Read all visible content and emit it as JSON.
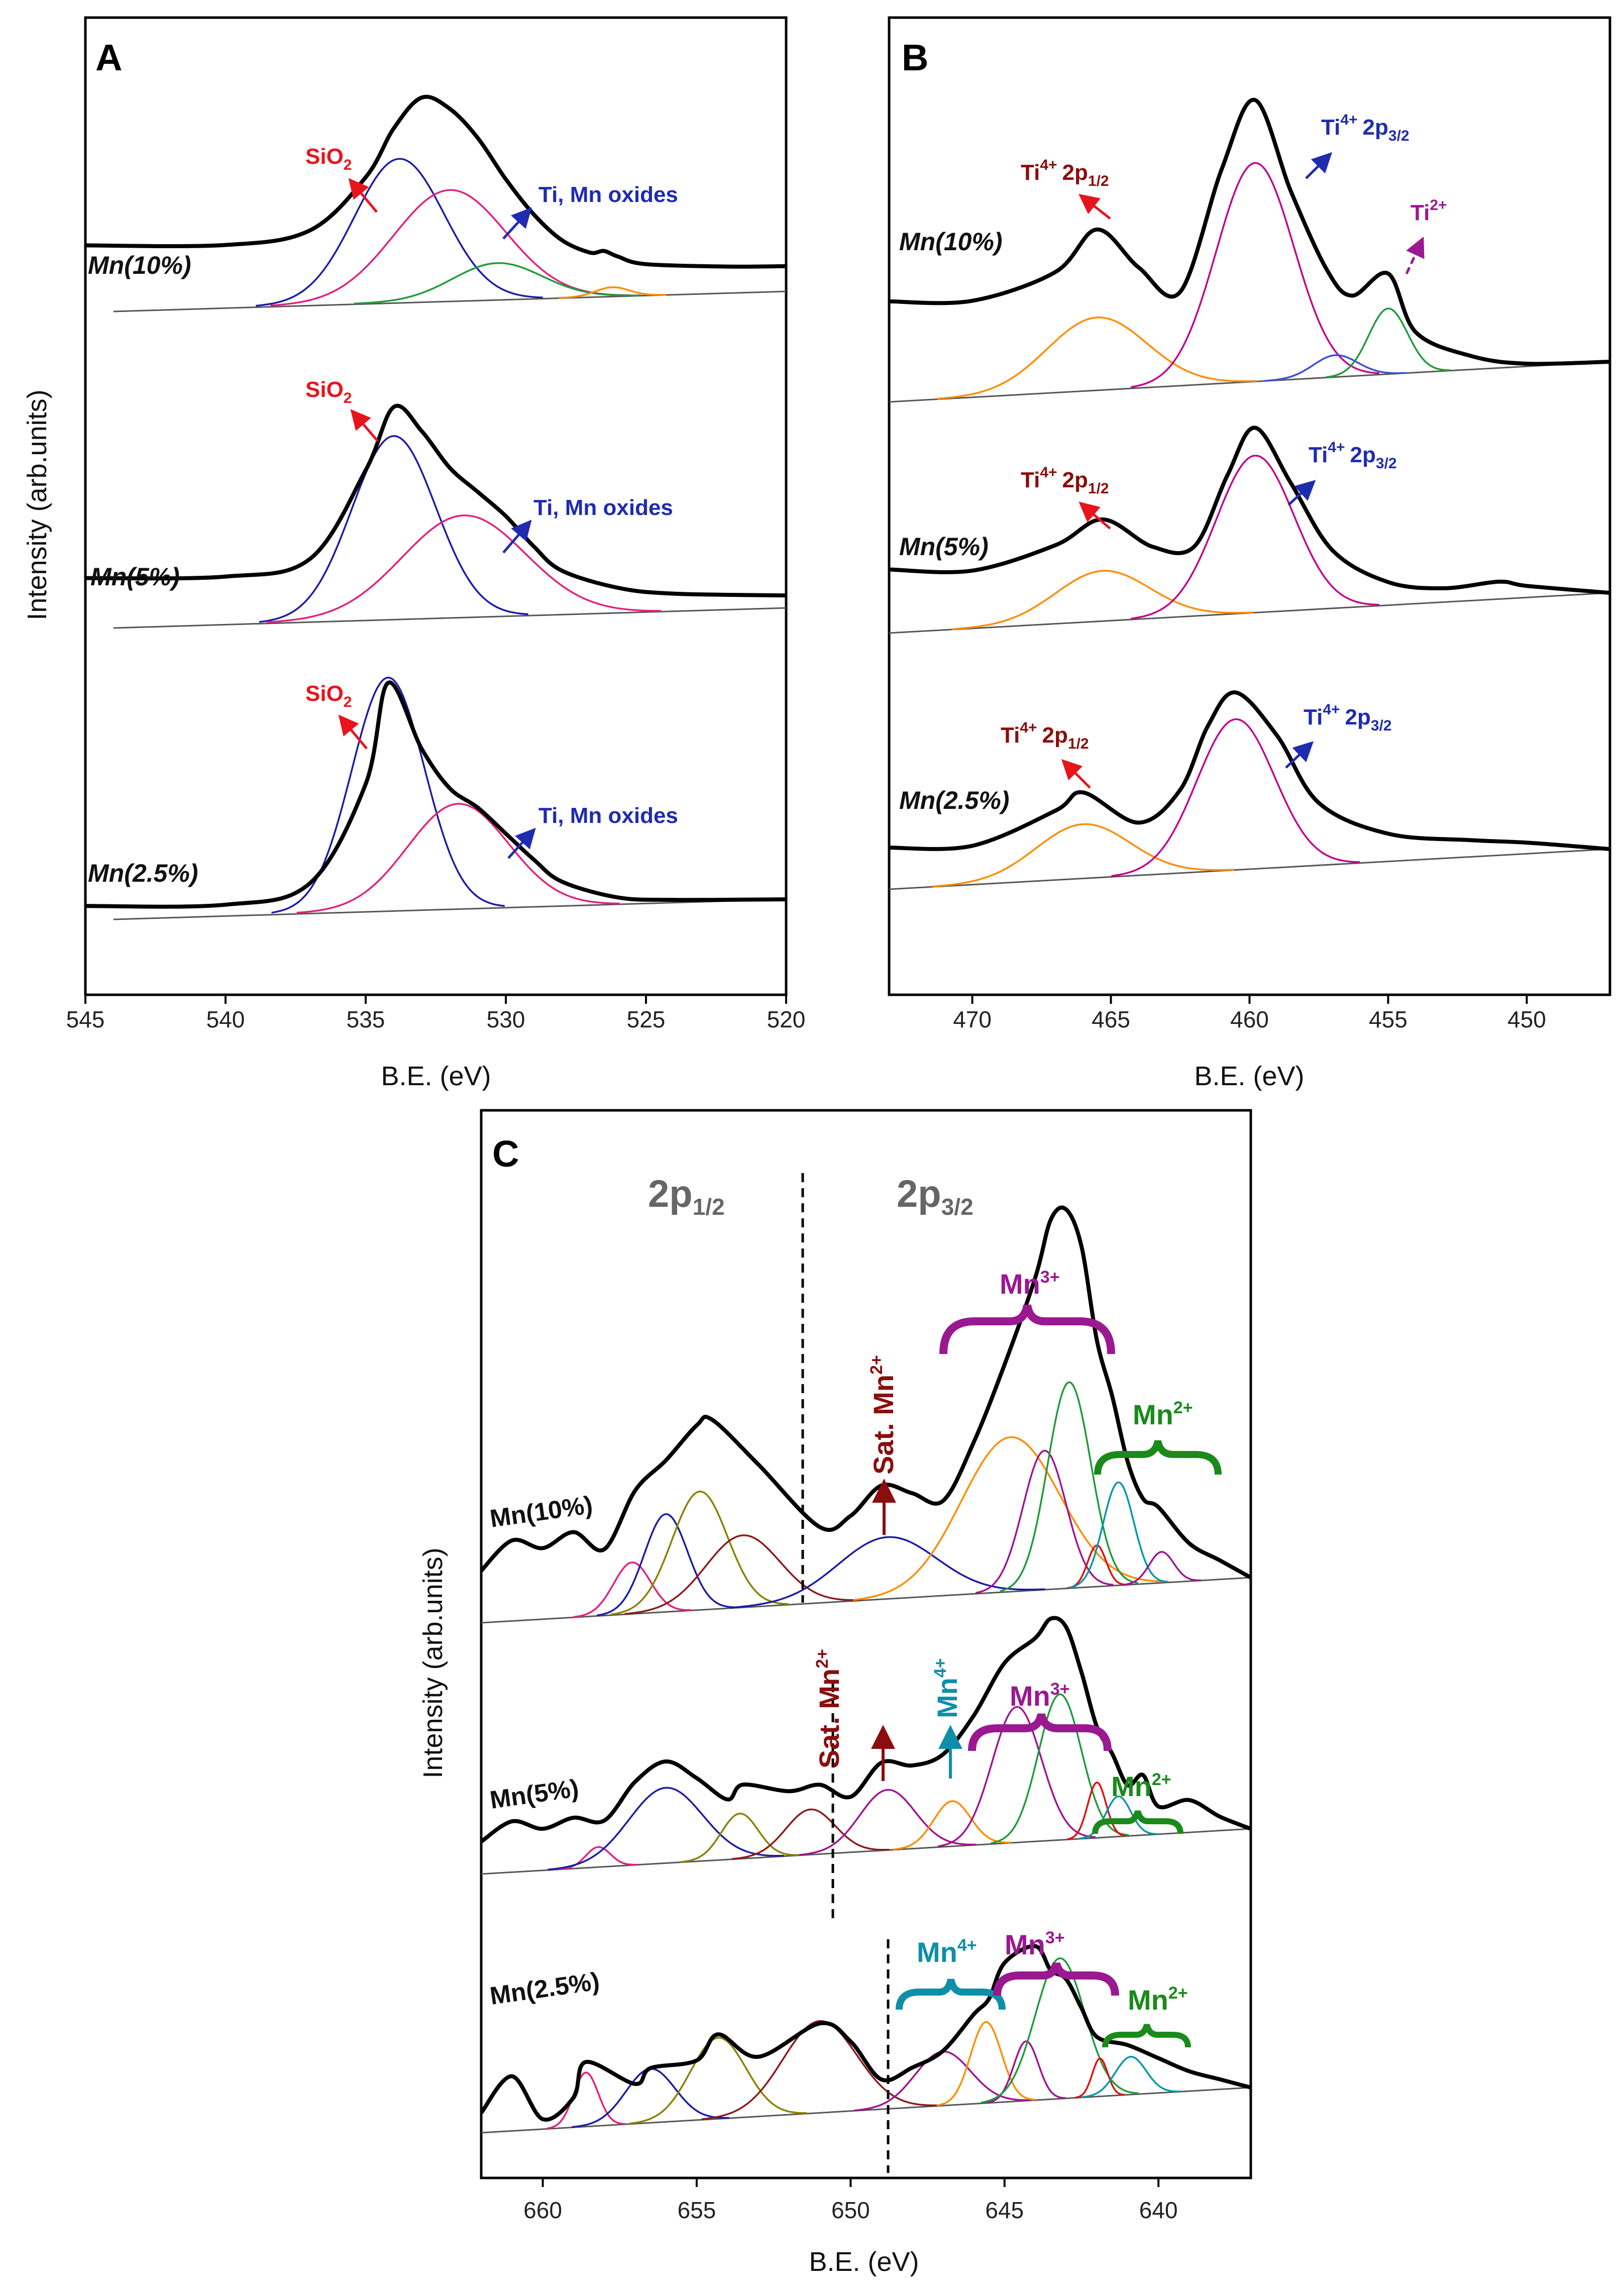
{
  "chart_data": [
    {
      "panel": "A",
      "type": "line",
      "title": "A",
      "xlabel": "B.E. (eV)",
      "ylabel": "Intensity (arb.units)",
      "xlim": [
        545,
        520
      ],
      "xticks": [
        "545",
        "540",
        "535",
        "530",
        "525",
        "520"
      ],
      "series": [
        {
          "name": "Mn(10%)",
          "x": [
            545,
            540,
            537,
            535,
            534,
            533,
            532,
            531,
            530,
            529,
            528,
            527,
            526.5,
            526,
            525,
            522,
            520
          ],
          "values": [
            0.55,
            0.52,
            0.62,
            1.05,
            1.45,
            1.7,
            1.6,
            1.35,
            1.0,
            0.7,
            0.48,
            0.37,
            0.38,
            0.33,
            0.26,
            0.22,
            0.21
          ],
          "components": [
            {
              "label": "SiO2",
              "color": "#1a1aa8",
              "center": 533.8,
              "height": 1.1,
              "width": 1.6
            },
            {
              "label": "",
              "color": "#e0217d",
              "center": 532.0,
              "height": 0.85,
              "width": 2.0
            },
            {
              "label": "Ti, Mn oxides",
              "color": "#1e9b3a",
              "center": 530.3,
              "height": 0.28,
              "width": 1.6
            },
            {
              "label": "",
              "color": "#ff8c00",
              "center": 526.2,
              "height": 0.07,
              "width": 0.6
            }
          ]
        },
        {
          "name": "Mn(5%)",
          "x": [
            545,
            540,
            537,
            535,
            534,
            533,
            532,
            531,
            530,
            529,
            528,
            526,
            524,
            520
          ],
          "values": [
            0.4,
            0.38,
            0.5,
            1.2,
            1.7,
            1.5,
            1.2,
            1.0,
            0.8,
            0.55,
            0.35,
            0.2,
            0.14,
            0.1
          ],
          "components": [
            {
              "label": "SiO2",
              "color": "#1a1aa8",
              "center": 534.0,
              "height": 1.35,
              "width": 1.5
            },
            {
              "label": "Ti, Mn oxides",
              "color": "#e0217d",
              "center": 531.5,
              "height": 0.75,
              "width": 2.2
            }
          ]
        },
        {
          "name": "Mn(2.5%)",
          "x": [
            545,
            540,
            537,
            535,
            534.2,
            533,
            532,
            531,
            530,
            529,
            528,
            526,
            524,
            520
          ],
          "values": [
            0.1,
            0.08,
            0.22,
            0.95,
            1.7,
            1.2,
            0.9,
            0.75,
            0.55,
            0.35,
            0.18,
            0.05,
            0.02,
            0.0
          ],
          "components": [
            {
              "label": "SiO2",
              "color": "#1a1aa8",
              "center": 534.2,
              "height": 1.6,
              "width": 1.3
            },
            {
              "label": "Ti, Mn oxides",
              "color": "#e0217d",
              "center": 531.7,
              "height": 0.72,
              "width": 1.8
            }
          ]
        }
      ],
      "annotations": [
        "SiO2",
        "Ti, Mn oxides"
      ]
    },
    {
      "panel": "B",
      "type": "line",
      "title": "B",
      "xlabel": "B.E. (eV)",
      "xlim": [
        473,
        447
      ],
      "xticks": [
        "470",
        "465",
        "460",
        "455",
        "450"
      ],
      "series": [
        {
          "name": "Mn(10%)",
          "x": [
            473,
            470,
            467,
            465.5,
            464,
            462.5,
            461,
            459.8,
            458.5,
            457.2,
            456.3,
            455,
            454,
            452,
            450,
            447
          ],
          "values": [
            0.75,
            0.72,
            0.9,
            1.2,
            0.9,
            0.7,
            1.6,
            2.1,
            1.4,
            0.8,
            0.6,
            0.75,
            0.3,
            0.1,
            0.02,
            0.0
          ],
          "components": [
            {
              "label": "Ti4+ 2p1/2",
              "color": "#ff8c00",
              "center": 465.5,
              "height": 0.5,
              "width": 1.8
            },
            {
              "label": "Ti4+ 2p3/2",
              "color": "#c2008a",
              "center": 459.8,
              "height": 1.5,
              "width": 1.4
            },
            {
              "label": "",
              "color": "#3b4fd8",
              "center": 456.9,
              "height": 0.15,
              "width": 0.8
            },
            {
              "label": "Ti2+",
              "color": "#1e9b3a",
              "center": 455.0,
              "height": 0.45,
              "width": 0.7
            }
          ]
        },
        {
          "name": "Mn(5%)",
          "x": [
            473,
            470,
            467,
            465.3,
            463.5,
            462,
            460.8,
            459.8,
            458.5,
            457,
            455,
            453,
            451,
            450,
            447
          ],
          "values": [
            0.55,
            0.5,
            0.68,
            0.88,
            0.62,
            0.6,
            1.2,
            1.6,
            1.1,
            0.5,
            0.2,
            0.12,
            0.15,
            0.1,
            0.0
          ],
          "components": [
            {
              "label": "Ti4+ 2p1/2",
              "color": "#ff8c00",
              "center": 465.3,
              "height": 0.4,
              "width": 1.7
            },
            {
              "label": "Ti4+ 2p3/2",
              "color": "#c2008a",
              "center": 459.8,
              "height": 1.25,
              "width": 1.4
            }
          ]
        },
        {
          "name": "Mn(2.5%)",
          "x": [
            473,
            470,
            467,
            466,
            464,
            462.5,
            461.5,
            460.5,
            459,
            457.5,
            455,
            452,
            450,
            447
          ],
          "values": [
            0.3,
            0.28,
            0.5,
            0.62,
            0.38,
            0.6,
            1.05,
            1.28,
            0.95,
            0.45,
            0.2,
            0.12,
            0.08,
            0.0
          ],
          "components": [
            {
              "label": "Ti4+ 2p1/2",
              "color": "#ff8c00",
              "center": 466.0,
              "height": 0.36,
              "width": 1.7
            },
            {
              "label": "Ti4+ 2p3/2",
              "color": "#c2008a",
              "center": 460.5,
              "height": 1.0,
              "width": 1.4
            }
          ]
        }
      ],
      "annotations": [
        "Ti4+ 2p1/2",
        "Ti4+ 2p3/2",
        "Ti2+"
      ]
    },
    {
      "panel": "C",
      "type": "line",
      "title": "C",
      "xlabel": "B.E. (eV)",
      "ylabel": "Intensity (arb.units)",
      "xlim": [
        662,
        637
      ],
      "xticks": [
        "660",
        "655",
        "650",
        "645",
        "640"
      ],
      "series": [
        {
          "name": "Mn(10%)",
          "x": [
            662,
            661,
            660,
            659,
            658,
            657,
            656,
            655,
            654.5,
            653,
            651,
            650,
            649,
            648,
            647,
            646,
            645,
            644,
            643.5,
            643,
            642.5,
            642,
            641.5,
            641,
            640.5,
            640,
            639,
            638,
            637
          ],
          "values": [
            0.55,
            0.85,
            0.75,
            0.9,
            0.7,
            1.3,
            1.6,
            1.95,
            2.0,
            1.5,
            0.8,
            0.9,
            1.2,
            1.1,
            1.0,
            1.6,
            2.4,
            3.3,
            3.9,
            4.0,
            3.6,
            2.6,
            2.0,
            1.3,
            0.9,
            0.8,
            0.4,
            0.2,
            0.0
          ],
          "components": [
            {
              "label": "",
              "color": "#e0217d",
              "center": 657.1,
              "height": 0.5,
              "width": 0.6
            },
            {
              "label": "",
              "color": "#1a1aa8",
              "center": 656.0,
              "height": 0.95,
              "width": 0.7
            },
            {
              "label": "",
              "color": "#8a8000",
              "center": 654.9,
              "height": 1.15,
              "width": 0.9
            },
            {
              "label": "",
              "color": "#8b1a1a",
              "center": 653.5,
              "height": 0.7,
              "width": 1.2
            },
            {
              "label": "Sat. Mn2+",
              "color": "#1a1aa8",
              "center": 648.8,
              "height": 0.6,
              "width": 1.6
            },
            {
              "label": "Mn3+",
              "color": "#ff8c00",
              "center": 644.8,
              "height": 1.5,
              "width": 1.6
            },
            {
              "label": "Mn3+",
              "color": "#a0138e",
              "center": 643.7,
              "height": 1.35,
              "width": 0.7
            },
            {
              "label": "Mn3+",
              "color": "#1e9b3a",
              "center": 642.9,
              "height": 2.0,
              "width": 0.7
            },
            {
              "label": "",
              "color": "#e01010",
              "center": 642.0,
              "height": 0.4,
              "width": 0.3
            },
            {
              "label": "Mn2+",
              "color": "#0097a7",
              "center": 641.3,
              "height": 1.0,
              "width": 0.5
            },
            {
              "label": "Mn2+",
              "color": "#a0138e",
              "center": 639.9,
              "height": 0.3,
              "width": 0.4
            }
          ]
        },
        {
          "name": "Mn(5%)",
          "x": [
            662,
            661,
            660,
            659,
            658,
            657,
            656,
            655,
            654,
            653.5,
            652,
            651,
            650,
            649,
            648,
            647,
            646,
            645,
            644,
            643.5,
            643,
            642.5,
            642,
            641.5,
            641,
            640.5,
            640,
            639,
            638,
            637
          ],
          "values": [
            0.35,
            0.55,
            0.45,
            0.55,
            0.5,
            0.9,
            1.1,
            0.9,
            0.65,
            0.8,
            0.7,
            0.75,
            0.6,
            0.95,
            0.9,
            1.0,
            1.4,
            1.95,
            2.2,
            2.4,
            2.3,
            1.8,
            1.2,
            0.9,
            0.55,
            0.65,
            0.3,
            0.35,
            0.15,
            0.0
          ],
          "components": [
            {
              "label": "",
              "color": "#e0217d",
              "center": 658.2,
              "height": 0.2,
              "width": 0.4
            },
            {
              "label": "",
              "color": "#1a1aa8",
              "center": 656.0,
              "height": 0.75,
              "width": 1.2
            },
            {
              "label": "",
              "color": "#8a8000",
              "center": 653.6,
              "height": 0.45,
              "width": 0.6
            },
            {
              "label": "",
              "color": "#8b1a1a",
              "center": 651.3,
              "height": 0.45,
              "width": 0.8
            },
            {
              "label": "Sat. Mn2+",
              "color": "#a0138e",
              "center": 648.8,
              "height": 0.6,
              "width": 0.9
            },
            {
              "label": "Mn4+",
              "color": "#ff8c00",
              "center": 646.7,
              "height": 0.45,
              "width": 0.6
            },
            {
              "label": "Mn3+",
              "color": "#a0138e",
              "center": 644.6,
              "height": 1.35,
              "width": 0.8
            },
            {
              "label": "Mn3+",
              "color": "#1e9b3a",
              "center": 643.2,
              "height": 1.45,
              "width": 0.7
            },
            {
              "label": "",
              "color": "#e01010",
              "center": 642.0,
              "height": 0.55,
              "width": 0.3
            },
            {
              "label": "Mn2+",
              "color": "#0097a7",
              "center": 641.3,
              "height": 0.4,
              "width": 0.4
            }
          ]
        },
        {
          "name": "Mn(2.5%)",
          "x": [
            662,
            661,
            660,
            659,
            658.6,
            657,
            656.5,
            655,
            654.3,
            653,
            651,
            650,
            649,
            648,
            647,
            646,
            645.5,
            645,
            644,
            643.5,
            643,
            642.5,
            642,
            641,
            640,
            639,
            638,
            637
          ],
          "values": [
            0.2,
            0.55,
            0.1,
            0.3,
            0.65,
            0.4,
            0.55,
            0.6,
            0.85,
            0.6,
            0.9,
            0.7,
            0.3,
            0.4,
            0.55,
            0.9,
            1.05,
            1.4,
            1.55,
            1.3,
            1.2,
            0.9,
            0.6,
            0.5,
            0.35,
            0.2,
            0.1,
            0.0
          ],
          "components": [
            {
              "label": "",
              "color": "#e0217d",
              "center": 658.6,
              "height": 0.5,
              "width": 0.4
            },
            {
              "label": "",
              "color": "#1a1aa8",
              "center": 656.5,
              "height": 0.5,
              "width": 0.8
            },
            {
              "label": "",
              "color": "#8a8000",
              "center": 654.3,
              "height": 0.75,
              "width": 0.9
            },
            {
              "label": "",
              "color": "#8b1a1a",
              "center": 651.0,
              "height": 0.85,
              "width": 1.2
            },
            {
              "label": "Mn4+",
              "color": "#a0138e",
              "center": 647.0,
              "height": 0.5,
              "width": 0.9
            },
            {
              "label": "Mn4+",
              "color": "#ff8c00",
              "center": 645.6,
              "height": 0.75,
              "width": 0.5
            },
            {
              "label": "Mn3+",
              "color": "#a0138e",
              "center": 644.3,
              "height": 0.55,
              "width": 0.4
            },
            {
              "label": "Mn3+",
              "color": "#1e9b3a",
              "center": 643.2,
              "height": 1.3,
              "width": 0.8
            },
            {
              "label": "",
              "color": "#e01010",
              "center": 641.9,
              "height": 0.35,
              "width": 0.25
            },
            {
              "label": "Mn2+",
              "color": "#0097a7",
              "center": 640.9,
              "height": 0.35,
              "width": 0.5
            }
          ]
        }
      ],
      "annotations": [
        "2p1/2",
        "2p3/2",
        "Sat. Mn2+",
        "Mn3+",
        "Mn2+",
        "Mn4+"
      ]
    }
  ],
  "text": {
    "panelA": "A",
    "panelB": "B",
    "panelC": "C",
    "xlabel": "B.E. (eV)",
    "ylabel": "Intensity (arb.units)",
    "s10": "Mn(10%)",
    "s5": "Mn(5%)",
    "s25": "Mn(2.5%)",
    "sio2_a": "SiO",
    "sio2_b": "2",
    "tiMn": "Ti, Mn oxides",
    "ti": "Ti",
    "ti4": "4+",
    "ti2": "2+",
    "p2p": "2p",
    "half": "1/2",
    "threehalf": "3/2",
    "mn": "Mn",
    "mn3": "3+",
    "mn2": "2+",
    "mn4": "4+",
    "sat": "Sat. Mn"
  },
  "colors": {
    "axis": "#000000",
    "envelope": "#000000",
    "baseline": "#555555",
    "red": "#e8141c",
    "blue": "#1f2bb0",
    "darkred": "#8b0d0d",
    "purple": "#9a1890",
    "green": "#1a8a1a",
    "teal": "#0e8fa8",
    "gray": "#666666"
  }
}
